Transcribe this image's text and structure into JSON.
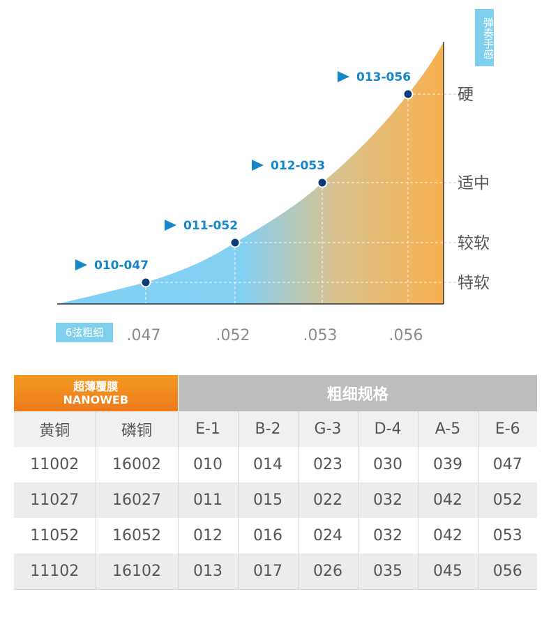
{
  "chart_data": {
    "type": "area",
    "title": "",
    "y_axis_tag": "弹奏手感",
    "x_axis_tag": "6弦粗细",
    "x_ticks": [
      ".047",
      ".052",
      ".053",
      ".056"
    ],
    "y_levels": [
      "特软",
      "较软",
      "适中",
      "硬"
    ],
    "points": [
      {
        "label": "010-047",
        "x": ".047",
        "level": "特软"
      },
      {
        "label": "011-052",
        "x": ".052",
        "level": "较软"
      },
      {
        "label": "012-053",
        "x": ".053",
        "level": "适中"
      },
      {
        "label": "013-056",
        "x": ".056",
        "level": "硬"
      }
    ],
    "colors": {
      "area_start": "#7fd0f5",
      "area_end": "#f8b04e",
      "point": "#0c3d78",
      "label": "#1486c9",
      "grid": "#cccccc",
      "axis": "#333333"
    }
  },
  "table": {
    "brand_line1": "超薄覆膜",
    "brand_line2": "NANOWEB",
    "spec_title": "粗细规格",
    "columns": [
      "黄铜",
      "磷铜",
      "E-1",
      "B-2",
      "G-3",
      "D-4",
      "A-5",
      "E-6"
    ],
    "rows": [
      [
        "11002",
        "16002",
        "010",
        "014",
        "023",
        "030",
        "039",
        "047"
      ],
      [
        "11027",
        "16027",
        "011",
        "015",
        "022",
        "032",
        "042",
        "052"
      ],
      [
        "11052",
        "16052",
        "012",
        "016",
        "024",
        "032",
        "042",
        "053"
      ],
      [
        "11102",
        "16102",
        "013",
        "017",
        "026",
        "035",
        "045",
        "056"
      ]
    ],
    "colors": {
      "brand": "#f08a1e",
      "spec_header": "#bdbdbd"
    }
  }
}
